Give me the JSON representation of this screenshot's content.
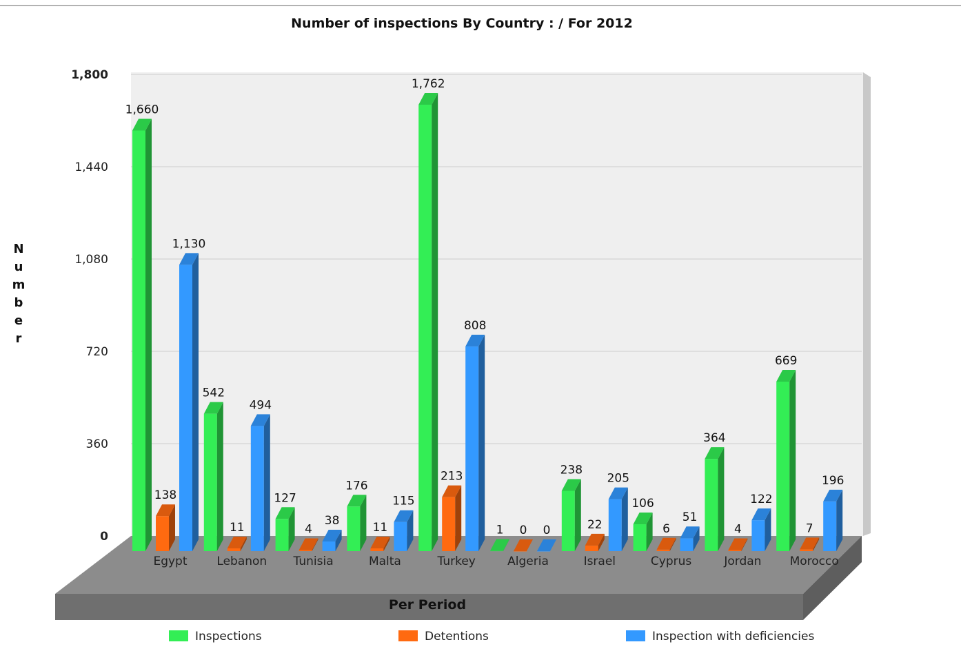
{
  "chart_data": {
    "type": "bar",
    "title": "Number of inspections By Country :  / For 2012",
    "xlabel": "Per Period",
    "ylabel": "Number",
    "ylim": [
      0,
      1800
    ],
    "y_ticks": [
      "0",
      "360",
      "720",
      "1,080",
      "1,440",
      "1,800"
    ],
    "grid": true,
    "legend_position": "bottom",
    "categories": [
      "Egypt",
      "Lebanon",
      "Tunisia",
      "Malta",
      "Turkey",
      "Algeria",
      "Israel",
      "Cyprus",
      "Jordan",
      "Morocco"
    ],
    "series": [
      {
        "name": "Inspections",
        "color": "#33ee55",
        "values": [
          1660,
          542,
          127,
          176,
          1762,
          1,
          238,
          106,
          364,
          669
        ],
        "labels": [
          "1,660",
          "542",
          "127",
          "176",
          "1,762",
          "1",
          "238",
          "106",
          "364",
          "669"
        ]
      },
      {
        "name": "Detentions",
        "color": "#ff6a10",
        "values": [
          138,
          11,
          4,
          11,
          213,
          0,
          22,
          6,
          4,
          7
        ],
        "labels": [
          "138",
          "11",
          "4",
          "11",
          "213",
          "0",
          "22",
          "6",
          "4",
          "7"
        ]
      },
      {
        "name": "Inspection with deficiencies",
        "color": "#3399ff",
        "values": [
          1130,
          494,
          38,
          115,
          808,
          0,
          205,
          51,
          122,
          196
        ],
        "labels": [
          "1,130",
          "494",
          "38",
          "115",
          "808",
          "0",
          "205",
          "51",
          "122",
          "196"
        ]
      }
    ]
  }
}
